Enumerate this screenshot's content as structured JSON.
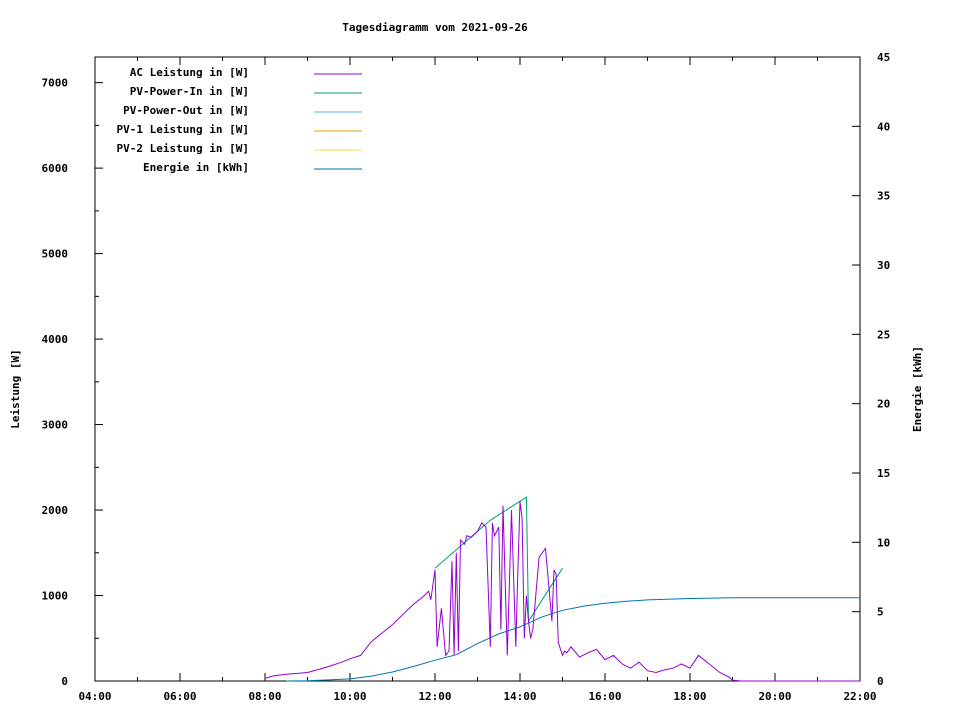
{
  "chart_data": {
    "type": "line",
    "title": "Tagesdiagramm vom 2021-09-26",
    "ylabel": "Leistung [W]",
    "y2label": "Energie [kWh]",
    "xlim": [
      4,
      22
    ],
    "ylim": [
      0,
      7300
    ],
    "y2lim": [
      0,
      45
    ],
    "x_ticks": [
      "04:00",
      "06:00",
      "08:00",
      "10:00",
      "12:00",
      "14:00",
      "16:00",
      "18:00",
      "20:00",
      "22:00"
    ],
    "y_ticks": [
      0,
      1000,
      2000,
      3000,
      4000,
      5000,
      6000,
      7000
    ],
    "y2_ticks": [
      0,
      5,
      10,
      15,
      20,
      25,
      30,
      35,
      40,
      45
    ],
    "legend_position": "top-left",
    "grid": false,
    "series": [
      {
        "name": "AC Leistung in [W]",
        "color": "#9400d3",
        "axis": "y",
        "x": [
          8.0,
          8.2,
          8.5,
          8.8,
          9.0,
          9.3,
          9.5,
          9.8,
          10.0,
          10.25,
          10.5,
          10.75,
          11.0,
          11.25,
          11.5,
          11.75,
          11.85,
          11.9,
          12.0,
          12.05,
          12.15,
          12.25,
          12.33,
          12.4,
          12.45,
          12.5,
          12.55,
          12.6,
          12.7,
          12.75,
          12.85,
          13.0,
          13.1,
          13.2,
          13.3,
          13.35,
          13.4,
          13.5,
          13.55,
          13.6,
          13.7,
          13.8,
          13.9,
          13.95,
          14.0,
          14.05,
          14.1,
          14.15,
          14.2,
          14.25,
          14.3,
          14.45,
          14.6,
          14.75,
          14.8,
          14.85,
          14.9,
          15.0,
          15.05,
          15.1,
          15.2,
          15.4,
          15.6,
          15.8,
          16.0,
          16.2,
          16.4,
          16.6,
          16.8,
          17.0,
          17.2,
          17.4,
          17.6,
          17.8,
          18.0,
          18.2,
          18.3,
          18.5,
          18.7,
          18.9,
          19.0,
          19.2,
          19.4,
          22.0
        ],
        "y": [
          30,
          60,
          80,
          90,
          100,
          140,
          170,
          220,
          260,
          300,
          460,
          560,
          660,
          780,
          900,
          1000,
          1050,
          950,
          1300,
          400,
          850,
          300,
          350,
          1400,
          300,
          1500,
          350,
          1650,
          1600,
          1700,
          1680,
          1750,
          1850,
          1800,
          400,
          1850,
          1700,
          1800,
          600,
          2050,
          300,
          2000,
          400,
          1300,
          2100,
          1900,
          500,
          1000,
          700,
          500,
          600,
          1450,
          1550,
          700,
          1300,
          1250,
          450,
          300,
          350,
          330,
          400,
          280,
          330,
          370,
          250,
          300,
          200,
          150,
          220,
          120,
          100,
          130,
          150,
          200,
          150,
          300,
          260,
          180,
          100,
          50,
          10,
          0,
          0,
          0
        ]
      },
      {
        "name": "PV-Power-In in [W]",
        "color": "#009e73",
        "axis": "y",
        "x": [
          12.0,
          13.3,
          14.15,
          14.2,
          15.0
        ],
        "y": [
          1320,
          1880,
          2150,
          700,
          1320
        ]
      },
      {
        "name": "PV-Power-Out in [W]",
        "color": "#56b4e9",
        "axis": "y",
        "x": [],
        "y": []
      },
      {
        "name": "PV-1 Leistung in [W]",
        "color": "#e69f00",
        "axis": "y",
        "x": [],
        "y": []
      },
      {
        "name": "PV-2 Leistung in [W]",
        "color": "#f0e442",
        "axis": "y",
        "x": [],
        "y": []
      },
      {
        "name": "Energie in [kWh]",
        "color": "#0072b2",
        "axis": "y2",
        "x": [
          8.5,
          9.0,
          9.5,
          10.0,
          10.5,
          11.0,
          11.5,
          12.0,
          12.5,
          13.0,
          13.5,
          14.0,
          14.5,
          15.0,
          15.5,
          16.0,
          16.5,
          17.0,
          18.0,
          19.0,
          20.0,
          22.0
        ],
        "y": [
          0,
          0.02,
          0.08,
          0.15,
          0.35,
          0.65,
          1.05,
          1.5,
          1.9,
          2.7,
          3.4,
          3.9,
          4.6,
          5.1,
          5.4,
          5.6,
          5.75,
          5.85,
          5.95,
          6.0,
          6.0,
          6.0
        ]
      }
    ]
  }
}
